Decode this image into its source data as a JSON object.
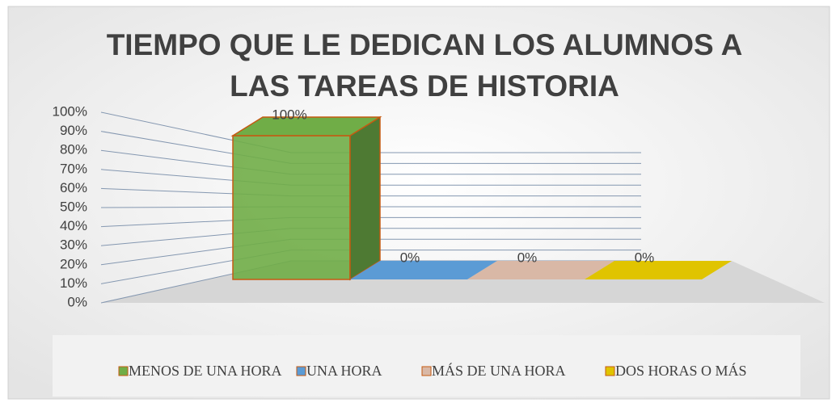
{
  "chart_data": {
    "type": "bar3d",
    "title": [
      "TIEMPO QUE LE DEDICAN LOS ALUMNOS A",
      "LAS TAREAS DE HISTORIA"
    ],
    "series": [
      {
        "name": "MENOS DE UNA HORA",
        "color": "#70ad47",
        "values": [
          100
        ],
        "value_labels": [
          "100%"
        ]
      },
      {
        "name": "UNA HORA",
        "color": "#5b9bd5",
        "values": [
          0
        ],
        "value_labels": [
          "0%"
        ]
      },
      {
        "name": "MÁS DE UNA HORA",
        "color": "#d9b8a6",
        "values": [
          0
        ],
        "value_labels": [
          "0%"
        ]
      },
      {
        "name": "DOS HORAS O MÁS",
        "color": "#e0c400",
        "values": [
          0
        ],
        "value_labels": [
          "0%"
        ]
      }
    ],
    "ylim": [
      0,
      100
    ],
    "yticks": [
      {
        "value": 0,
        "label": "0%"
      },
      {
        "value": 10,
        "label": "10%"
      },
      {
        "value": 20,
        "label": "20%"
      },
      {
        "value": 30,
        "label": "30%"
      },
      {
        "value": 40,
        "label": "40%"
      },
      {
        "value": 50,
        "label": "50%"
      },
      {
        "value": 60,
        "label": "60%"
      },
      {
        "value": 70,
        "label": "70%"
      },
      {
        "value": 80,
        "label": "80%"
      },
      {
        "value": 90,
        "label": "90%"
      },
      {
        "value": 100,
        "label": "100%"
      }
    ],
    "grid": true,
    "legend": "bottom"
  }
}
